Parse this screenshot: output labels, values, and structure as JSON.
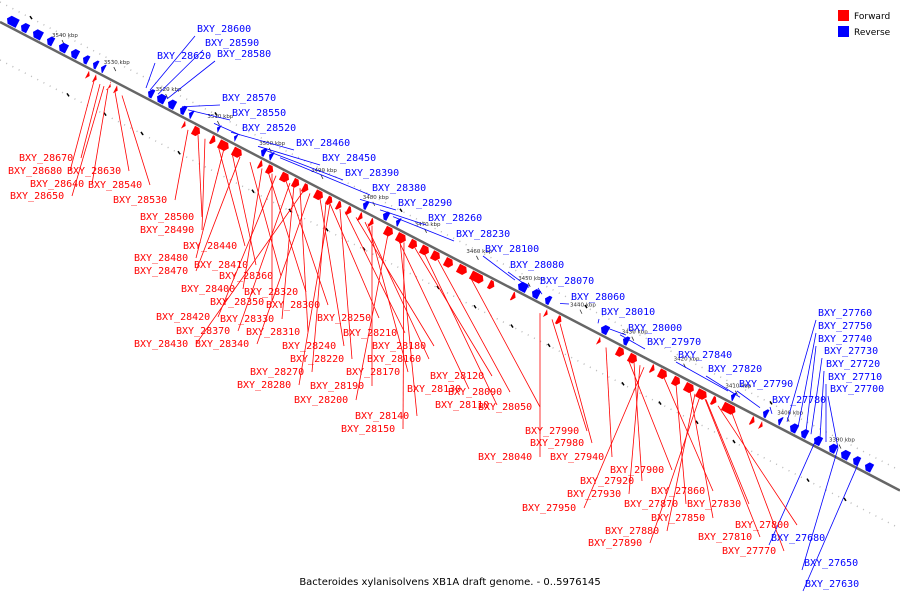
{
  "caption": "Bacteroides xylanisolvens XB1A draft genome. - 0..5976145",
  "legend": [
    {
      "label": "Forward",
      "color": "#ff0000"
    },
    {
      "label": "Reverse",
      "color": "#0000ff"
    }
  ],
  "colors": {
    "forward": "#ff0000",
    "reverse": "#0000ff",
    "backbone": "#666666",
    "dots": "#bbbbbb",
    "tick": "#000000"
  },
  "kbp_ticks": [
    "3540 kbp",
    "3530 kbp",
    "3520 kbp",
    "3510 kbp",
    "3500 kbp",
    "3490 kbp",
    "3480 kbp",
    "3470 kbp",
    "3460 kbp",
    "3450 kbp",
    "3440 kbp",
    "3430 kbp",
    "3420 kbp",
    "3410 kbp",
    "3400 kbp",
    "3390 kbp"
  ],
  "reverse_labels": [
    "BXY_28600",
    "BXY_28590",
    "BXY_28620",
    "BXY_28580",
    "BXY_28570",
    "BXY_28550",
    "BXY_28520",
    "BXY_28460",
    "BXY_28450",
    "BXY_28390",
    "BXY_28380",
    "BXY_28290",
    "BXY_28260",
    "BXY_28230",
    "BXY_28100",
    "BXY_28080",
    "BXY_28070",
    "BXY_28060",
    "BXY_28010",
    "BXY_28000",
    "BXY_27970",
    "BXY_27840",
    "BXY_27820",
    "BXY_27790",
    "BXY_27780",
    "BXY_27760",
    "BXY_27750",
    "BXY_27740",
    "BXY_27730",
    "BXY_27720",
    "BXY_27710",
    "BXY_27700",
    "BXY_27680",
    "BXY_27650",
    "BXY_27630"
  ],
  "forward_labels": [
    "BXY_28670",
    "BXY_28680",
    "BXY_28630",
    "BXY_28640",
    "BXY_28540",
    "BXY_28650",
    "BXY_28530",
    "BXY_28500",
    "BXY_28490",
    "BXY_28440",
    "BXY_28480",
    "BXY_28410",
    "BXY_28470",
    "BXY_28360",
    "BXY_28400",
    "BXY_28320",
    "BXY_28350",
    "BXY_28300",
    "BXY_28420",
    "BXY_28330",
    "BXY_28370",
    "BXY_28310",
    "BXY_28430",
    "BXY_28340",
    "BXY_28250",
    "BXY_28210",
    "BXY_28240",
    "BXY_28180",
    "BXY_28220",
    "BXY_28160",
    "BXY_28270",
    "BXY_28170",
    "BXY_28280",
    "BXY_28190",
    "BXY_28130",
    "BXY_28120",
    "BXY_28200",
    "BXY_28110",
    "BXY_28090",
    "BXY_28140",
    "BXY_28050",
    "BXY_28150",
    "BXY_27990",
    "BXY_27980",
    "BXY_28040",
    "BXY_27940",
    "BXY_27900",
    "BXY_27920",
    "BXY_27930",
    "BXY_27860",
    "BXY_27870",
    "BXY_27950",
    "BXY_27850",
    "BXY_27830",
    "BXY_27880",
    "BXY_27800",
    "BXY_27810",
    "BXY_27890",
    "BXY_27770"
  ]
}
